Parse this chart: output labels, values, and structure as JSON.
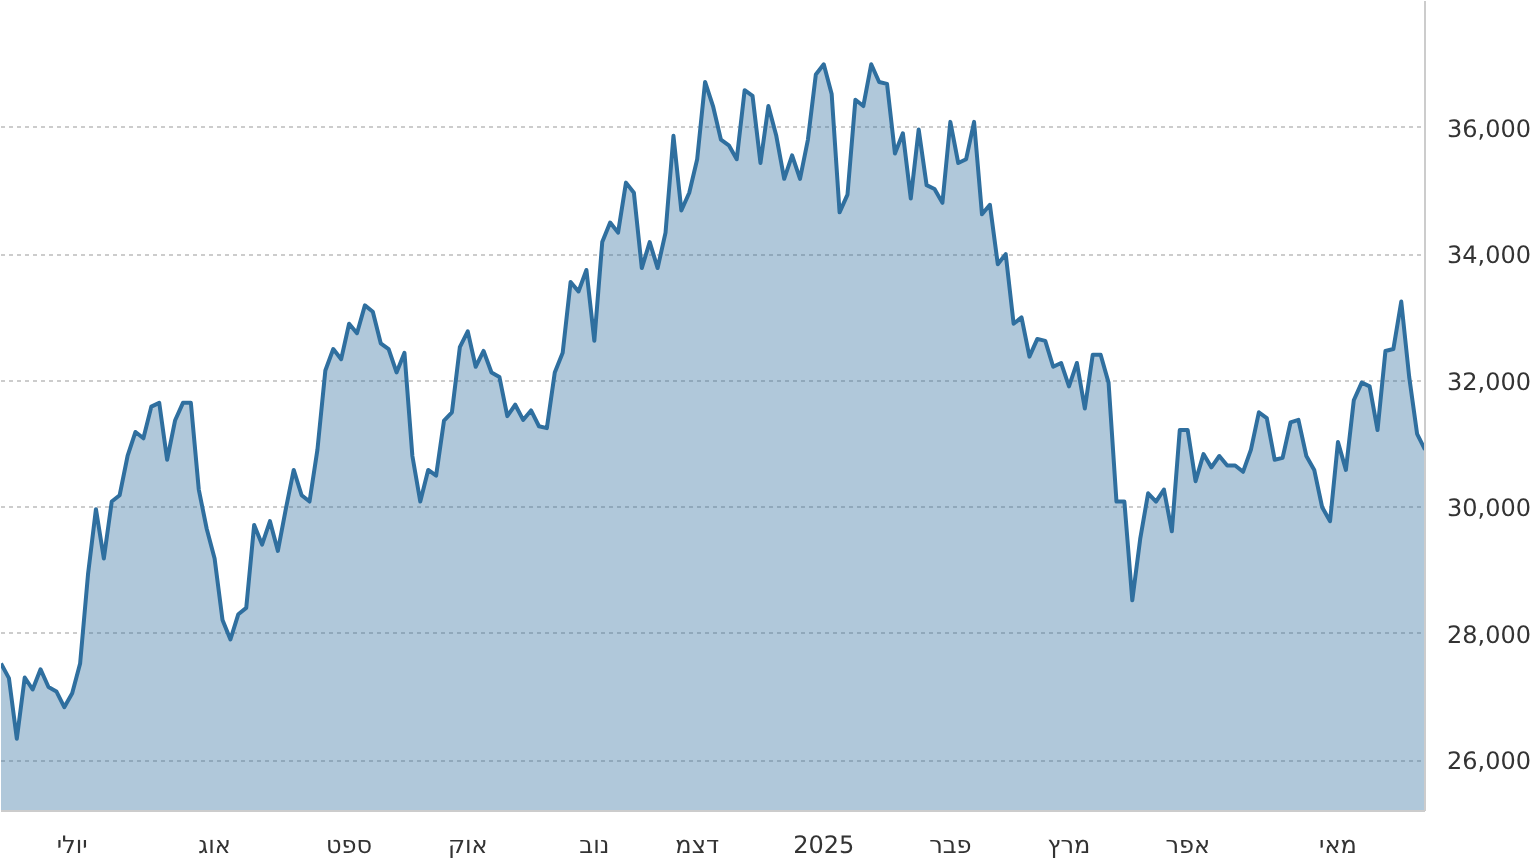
{
  "chart_data": {
    "type": "area",
    "categories": [
      null,
      null,
      null,
      null,
      null,
      null,
      null,
      null,
      null,
      "יולי",
      null,
      null,
      null,
      null,
      null,
      null,
      null,
      null,
      null,
      null,
      null,
      null,
      null,
      null,
      null,
      null,
      null,
      "אוג",
      null,
      null,
      null,
      null,
      null,
      null,
      null,
      null,
      null,
      null,
      null,
      null,
      null,
      null,
      null,
      null,
      "ספט",
      null,
      null,
      null,
      null,
      null,
      null,
      null,
      null,
      null,
      null,
      null,
      null,
      null,
      null,
      "אוק",
      null,
      null,
      null,
      null,
      null,
      null,
      null,
      null,
      null,
      null,
      null,
      null,
      null,
      null,
      null,
      "נוב",
      null,
      null,
      null,
      null,
      null,
      null,
      null,
      null,
      null,
      null,
      null,
      null,
      "דצמ",
      null,
      null,
      null,
      null,
      null,
      null,
      null,
      null,
      null,
      null,
      null,
      null,
      null,
      null,
      null,
      "2025",
      null,
      null,
      null,
      null,
      null,
      null,
      null,
      null,
      null,
      null,
      null,
      null,
      null,
      null,
      null,
      "פבר",
      null,
      null,
      null,
      null,
      null,
      null,
      null,
      null,
      null,
      null,
      null,
      null,
      null,
      null,
      "מרץ",
      null,
      null,
      null,
      null,
      null,
      null,
      null,
      null,
      null,
      null,
      null,
      null,
      null,
      null,
      "אפר",
      null,
      null,
      null,
      null,
      null,
      null,
      null,
      null,
      null,
      null,
      null,
      null,
      null,
      null,
      null,
      null,
      null,
      null,
      "מאי",
      null,
      null,
      null,
      null,
      null,
      null,
      null,
      null,
      null,
      null,
      null
    ],
    "series": [
      {
        "color": "#2f6f9f",
        "values": [
          27530,
          27300,
          26340,
          27310,
          27120,
          27440,
          27160,
          27090,
          26840,
          27060,
          27530,
          28940,
          29970,
          29190,
          30090,
          30190,
          30810,
          31190,
          31090,
          31590,
          31650,
          30750,
          31370,
          31650,
          31650,
          30280,
          29660,
          29190,
          28220,
          27910,
          28310,
          28410,
          29720,
          29410,
          29780,
          29310,
          29970,
          30590,
          30190,
          30090,
          30910,
          32160,
          32500,
          32340,
          32900,
          32750,
          33190,
          33090,
          32590,
          32500,
          32130,
          32440,
          30810,
          30090,
          30590,
          30500,
          31370,
          31500,
          32530,
          32780,
          32220,
          32470,
          32130,
          32060,
          31440,
          31620,
          31380,
          31530,
          31280,
          31250,
          32130,
          32440,
          33560,
          33410,
          33750,
          32630,
          34190,
          34500,
          34340,
          35130,
          34970,
          33780,
          34190,
          33780,
          34340,
          35870,
          34690,
          34970,
          35500,
          36720,
          36340,
          35810,
          35720,
          35500,
          36590,
          36500,
          35440,
          36340,
          35870,
          35190,
          35560,
          35190,
          35810,
          36840,
          37000,
          36530,
          34660,
          34940,
          36440,
          36340,
          37000,
          36720,
          36690,
          35590,
          35910,
          34880,
          35970,
          35090,
          35030,
          34810,
          36090,
          35440,
          35500,
          36090,
          34630,
          34780,
          33840,
          34000,
          32900,
          33000,
          32380,
          32660,
          32630,
          32220,
          32280,
          31910,
          32280,
          31560,
          32410,
          32410,
          31970,
          30090,
          30090,
          28530,
          29500,
          30220,
          30090,
          30280,
          29620,
          31220,
          31220,
          30410,
          30840,
          30630,
          30810,
          30660,
          30660,
          30560,
          30910,
          31500,
          31410,
          30750,
          30780,
          31340,
          31380,
          30810,
          30590,
          30000,
          29780,
          31030,
          30590,
          31690,
          31970,
          31910,
          31220,
          32470,
          32500,
          33250,
          32060,
          31160,
          30910
        ]
      }
    ],
    "ylim": [
      25200,
      38000
    ],
    "yticks": [
      {
        "value": 26000,
        "label": "26,000"
      },
      {
        "value": 28000,
        "label": "28,000"
      },
      {
        "value": 30000,
        "label": "30,000"
      },
      {
        "value": 32000,
        "label": "32,000"
      },
      {
        "value": 34000,
        "label": "34,000"
      },
      {
        "value": 36000,
        "label": "36,000"
      }
    ],
    "grid": "y"
  }
}
